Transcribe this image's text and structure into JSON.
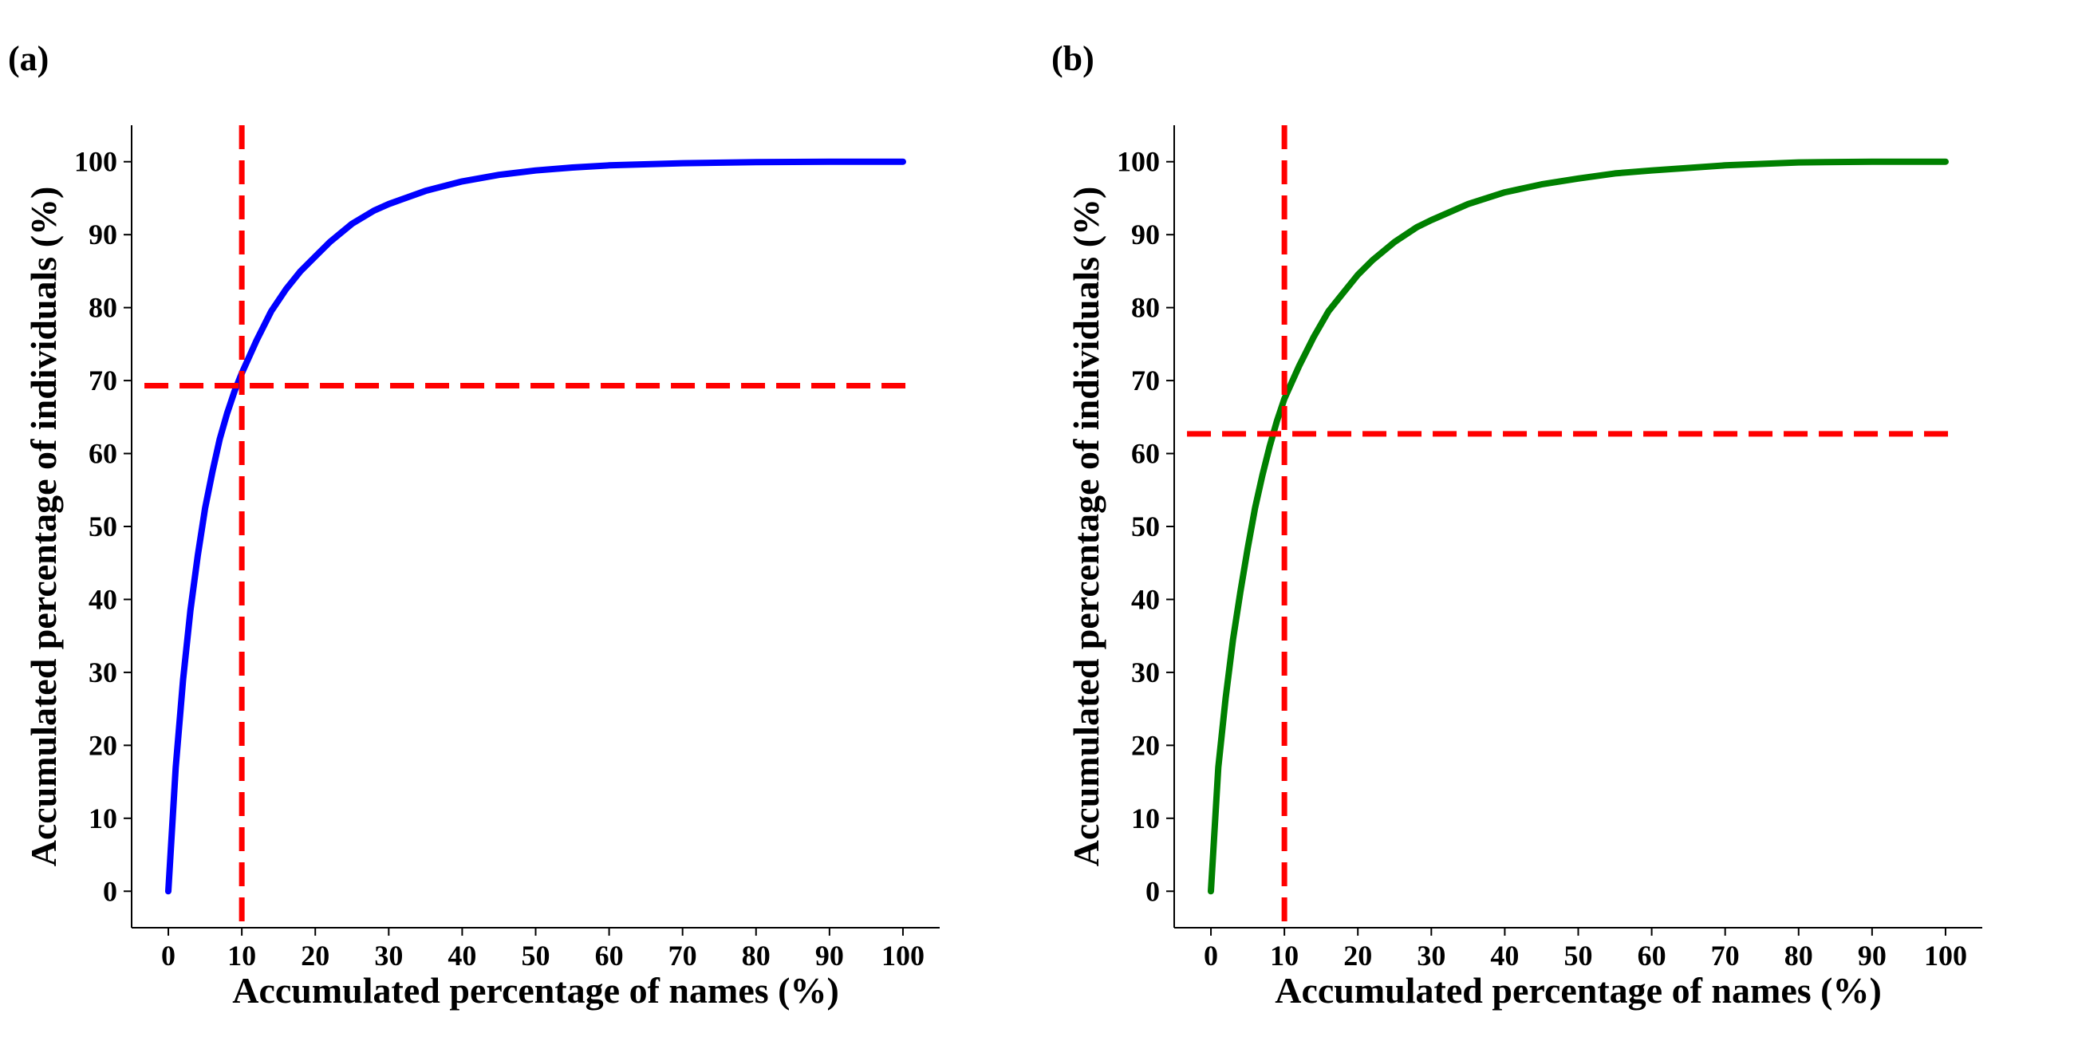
{
  "chart_data": [
    {
      "type": "line",
      "panel_label": "(a)",
      "xlabel": "Accumulated percentage of names (%)",
      "ylabel": "Accumulated percentage of individuals (%)",
      "xlim": [
        -5,
        105
      ],
      "ylim": [
        -5,
        105
      ],
      "xticks": [
        "0",
        "10",
        "20",
        "30",
        "40",
        "50",
        "60",
        "70",
        "80",
        "90",
        "100"
      ],
      "yticks": [
        "0",
        "10",
        "20",
        "30",
        "40",
        "50",
        "60",
        "70",
        "80",
        "90",
        "100"
      ],
      "grid": false,
      "series": [
        {
          "color": "#0000ff",
          "x": [
            0,
            1,
            2,
            3,
            4,
            5,
            6,
            7,
            8,
            9,
            10,
            12,
            14,
            16,
            18,
            20,
            22,
            25,
            28,
            30,
            35,
            40,
            45,
            50,
            55,
            60,
            70,
            80,
            90,
            100
          ],
          "y": [
            0,
            17,
            29,
            38.5,
            46,
            52.5,
            57.5,
            62,
            65.5,
            68.5,
            71,
            75.5,
            79.5,
            82.5,
            85,
            87,
            89,
            91.5,
            93.3,
            94.2,
            96,
            97.3,
            98.2,
            98.8,
            99.2,
            99.5,
            99.8,
            99.95,
            100,
            100
          ]
        }
      ],
      "reference_lines": {
        "color": "#ff0000",
        "style": "dashed",
        "vertical_x": 10,
        "horizontal_y": 69.3
      }
    },
    {
      "type": "line",
      "panel_label": "(b)",
      "xlabel": "Accumulated percentage of names (%)",
      "ylabel": "Accumulated percentage of individuals (%)",
      "xlim": [
        -5,
        105
      ],
      "ylim": [
        -5,
        105
      ],
      "xticks": [
        "0",
        "10",
        "20",
        "30",
        "40",
        "50",
        "60",
        "70",
        "80",
        "90",
        "100"
      ],
      "yticks": [
        "0",
        "10",
        "20",
        "30",
        "40",
        "50",
        "60",
        "70",
        "80",
        "90",
        "100"
      ],
      "grid": false,
      "series": [
        {
          "color": "#008000",
          "x": [
            0,
            1,
            2,
            3,
            4,
            5,
            6,
            7,
            8,
            9,
            10,
            12,
            14,
            16,
            18,
            20,
            22,
            25,
            28,
            30,
            35,
            40,
            45,
            50,
            55,
            60,
            70,
            80,
            90,
            100
          ],
          "y": [
            0,
            17,
            26.5,
            34.5,
            41,
            47,
            52.5,
            57,
            61,
            64.5,
            67.5,
            72,
            76,
            79.5,
            82,
            84.5,
            86.5,
            89,
            91,
            92,
            94.2,
            95.8,
            96.9,
            97.7,
            98.4,
            98.8,
            99.5,
            99.9,
            100,
            100
          ]
        }
      ],
      "reference_lines": {
        "color": "#ff0000",
        "style": "dashed",
        "vertical_x": 10,
        "horizontal_y": 62.7
      }
    }
  ]
}
